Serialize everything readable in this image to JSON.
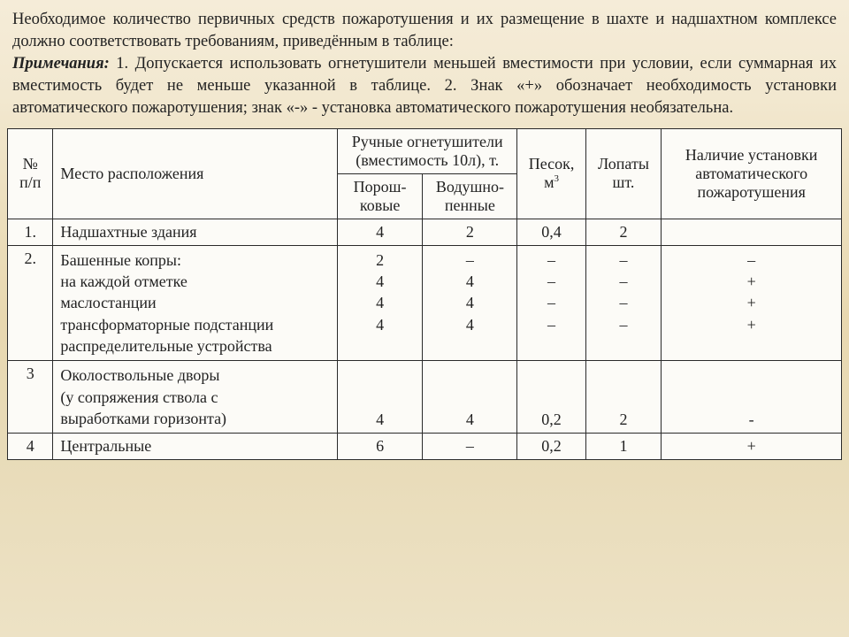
{
  "intro": {
    "para1": "Необходимое количество первичных средств пожаротушения и их размещение в шахте и надшахтном комплексе должно соответствовать требованиям, приведённым в таблице:",
    "notes_label": "Примечания:",
    "notes_text": " 1. Допускается использовать огнетушители меньшей вместимости при условии, если суммарная их вместимость будет не меньше указанной в таблице. 2. Знак «+» обозначает необходимость установки автоматического пожаротушения; знак «-» - установка автоматического пожаротушения необязательна."
  },
  "table": {
    "headers": {
      "num": "№ п/п",
      "location": "Место расположения",
      "extinguishers": "Ручные огнетушители (вместимость 10л), т.",
      "powder": "Порош-\nковые",
      "foam": "Водушно-\nпенные",
      "sand": "Песок, м³",
      "shovels": "Лопаты шт.",
      "auto": "Наличие установки автоматического пожаротушения"
    },
    "rows": [
      {
        "num": "1.",
        "location": "Надшахтные здания",
        "powder": "4",
        "foam": "2",
        "sand": "0,4",
        "shovels": "2",
        "auto": ""
      },
      {
        "num": "2.",
        "location": "Башенные копры:\nна каждой отметке\nмаслостанции\nтрансформаторные подстанции\nраспределительные устройства",
        "powder": "2\n4\n4\n4",
        "foam": "–\n4\n4\n4",
        "sand": "–\n–\n–\n–",
        "shovels": "–\n–\n–\n–",
        "auto": "–\n+\n+\n+"
      },
      {
        "num": "3",
        "location": "Околоствольные дворы\n(у сопряжения ствола с\nвыработками горизонта)",
        "powder": "4",
        "foam": "4",
        "sand": "0,2",
        "shovels": "2",
        "auto": "-"
      },
      {
        "num": "4",
        "location": "Центральные",
        "powder": "6",
        "foam": "–",
        "sand": "0,2",
        "shovels": "1",
        "auto": "+"
      }
    ]
  }
}
